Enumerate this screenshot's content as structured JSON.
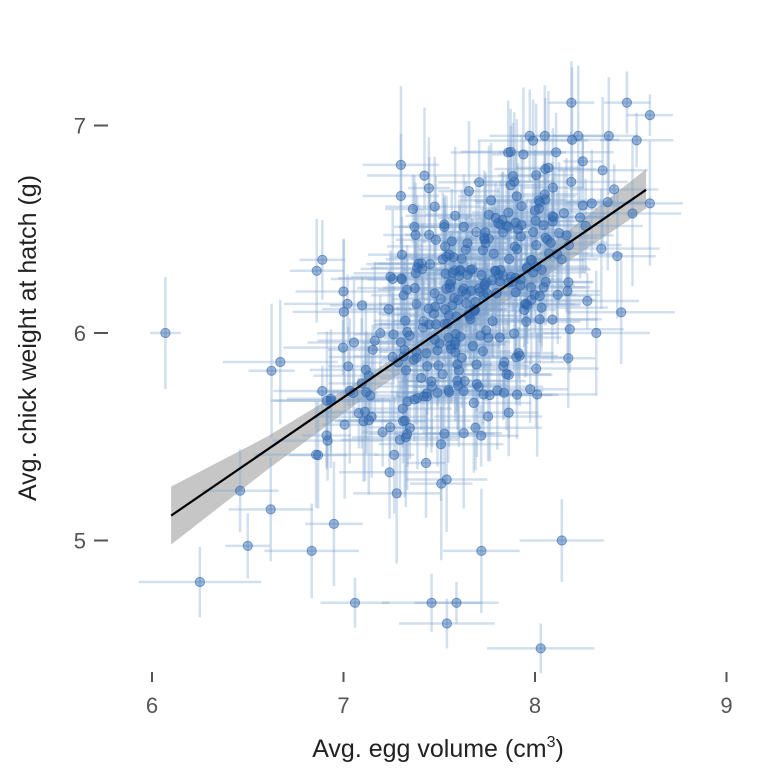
{
  "chart_data": {
    "type": "scatter",
    "title": "",
    "xlabel": "Avg. egg volume (cm",
    "xlabel_superscript": "3",
    "xlabel_suffix": ")",
    "ylabel": "Avg. chick weight at hatch (g)",
    "xlim": [
      5.9,
      9.05
    ],
    "ylim": [
      4.4,
      7.3
    ],
    "x_ticks": [
      6,
      7,
      8,
      9
    ],
    "y_ticks": [
      5,
      6,
      7
    ],
    "x_tick_labels": [
      "6",
      "7",
      "8",
      "9"
    ],
    "y_tick_labels": [
      "5",
      "6",
      "7"
    ],
    "grid": false,
    "legend": "none",
    "colors": {
      "point": "#2f66ad",
      "error_bar": "#7fa3cf",
      "fit_line": "#000000",
      "confidence_band": "#b3b3b3"
    },
    "fit_line": {
      "x": [
        6.1,
        8.58
      ],
      "y": [
        5.12,
        6.69
      ]
    },
    "confidence_band": {
      "x": [
        6.1,
        6.6,
        7.1,
        7.6,
        8.1,
        8.58
      ],
      "lower": [
        4.98,
        5.34,
        5.68,
        6.0,
        6.3,
        6.6
      ],
      "upper": [
        5.26,
        5.5,
        5.78,
        6.09,
        6.44,
        6.79
      ]
    },
    "outlier_points": [
      {
        "x": 6.07,
        "y": 6.0,
        "xerr": 0.08,
        "yerr": 0.27
      },
      {
        "x": 6.25,
        "y": 4.8,
        "xerr": 0.32,
        "yerr": 0.17
      },
      {
        "x": 7.06,
        "y": 4.7,
        "xerr": 0.18,
        "yerr": 0.12
      },
      {
        "x": 7.46,
        "y": 4.7,
        "xerr": 0.26,
        "yerr": 0.14
      },
      {
        "x": 7.59,
        "y": 4.7,
        "xerr": 0.22,
        "yerr": 0.1
      },
      {
        "x": 7.54,
        "y": 4.6,
        "xerr": 0.25,
        "yerr": 0.12
      },
      {
        "x": 8.03,
        "y": 4.48,
        "xerr": 0.28,
        "yerr": 0.12
      },
      {
        "x": 8.14,
        "y": 5.0,
        "xerr": 0.22,
        "yerr": 0.2
      },
      {
        "x": 7.72,
        "y": 4.95,
        "xerr": 0.2,
        "yerr": 0.3
      },
      {
        "x": 8.19,
        "y": 7.11,
        "xerr": 0.12,
        "yerr": 0.2
      },
      {
        "x": 8.48,
        "y": 7.11,
        "xerr": 0.12,
        "yerr": 0.15
      },
      {
        "x": 8.6,
        "y": 7.05,
        "xerr": 0.12,
        "yerr": 0.1
      },
      {
        "x": 6.86,
        "y": 6.3,
        "xerr": 0.14,
        "yerr": 0.25
      },
      {
        "x": 7.3,
        "y": 6.81,
        "xerr": 0.2,
        "yerr": 0.38
      },
      {
        "x": 7.3,
        "y": 6.66,
        "xerr": 0.2,
        "yerr": 0.3
      },
      {
        "x": 7.86,
        "y": 6.87,
        "xerr": 0.3,
        "yerr": 0.25
      },
      {
        "x": 6.62,
        "y": 5.15,
        "xerr": 0.22,
        "yerr": 0.25
      },
      {
        "x": 6.46,
        "y": 5.24,
        "xerr": 0.2,
        "yerr": 0.2
      },
      {
        "x": 6.67,
        "y": 5.86,
        "xerr": 0.3,
        "yerr": 0.3
      },
      {
        "x": 6.95,
        "y": 5.08,
        "xerr": 0.15,
        "yerr": 0.3
      },
      {
        "x": 8.32,
        "y": 6.0,
        "xerr": 0.28,
        "yerr": 0.3
      },
      {
        "x": 8.45,
        "y": 6.1,
        "xerr": 0.28,
        "yerr": 0.25
      },
      {
        "x": 8.43,
        "y": 6.37,
        "xerr": 0.2,
        "yerr": 0.3
      },
      {
        "x": 7.0,
        "y": 6.2,
        "xerr": 0.25,
        "yerr": 0.25
      }
    ],
    "bulk_points": {
      "count": 340,
      "center_x": 7.65,
      "center_y": 6.15,
      "sd_x": 0.36,
      "slope": 0.62,
      "residual_sd": 0.3,
      "xerr_range": [
        0.1,
        0.35
      ],
      "yerr_range": [
        0.12,
        0.38
      ],
      "x_range": [
        6.5,
        8.6
      ]
    }
  }
}
